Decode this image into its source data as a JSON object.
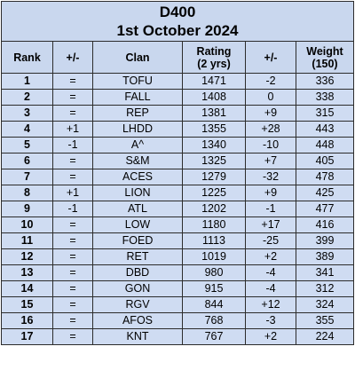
{
  "title": "D400",
  "subtitle": "1st October 2024",
  "columns": {
    "rank": "Rank",
    "change": "+/-",
    "clan": "Clan",
    "rating_line1": "Rating",
    "rating_line2": "(2 yrs)",
    "rating_change": "+/-",
    "weight_line1": "Weight",
    "weight_line2": "(150)"
  },
  "rows": [
    {
      "rank": "1",
      "change": "=",
      "clan": "TOFU",
      "rating": "1471",
      "rating_change": "-2",
      "weight": "336"
    },
    {
      "rank": "2",
      "change": "=",
      "clan": "FALL",
      "rating": "1408",
      "rating_change": "0",
      "weight": "338"
    },
    {
      "rank": "3",
      "change": "=",
      "clan": "REP",
      "rating": "1381",
      "rating_change": "+9",
      "weight": "315"
    },
    {
      "rank": "4",
      "change": "+1",
      "clan": "LHDD",
      "rating": "1355",
      "rating_change": "+28",
      "weight": "443"
    },
    {
      "rank": "5",
      "change": "-1",
      "clan": "A^",
      "rating": "1340",
      "rating_change": "-10",
      "weight": "448"
    },
    {
      "rank": "6",
      "change": "=",
      "clan": "S&M",
      "rating": "1325",
      "rating_change": "+7",
      "weight": "405"
    },
    {
      "rank": "7",
      "change": "=",
      "clan": "ACES",
      "rating": "1279",
      "rating_change": "-32",
      "weight": "478"
    },
    {
      "rank": "8",
      "change": "+1",
      "clan": "LION",
      "rating": "1225",
      "rating_change": "+9",
      "weight": "425"
    },
    {
      "rank": "9",
      "change": "-1",
      "clan": "ATL",
      "rating": "1202",
      "rating_change": "-1",
      "weight": "477"
    },
    {
      "rank": "10",
      "change": "=",
      "clan": "LOW",
      "rating": "1180",
      "rating_change": "+17",
      "weight": "416"
    },
    {
      "rank": "11",
      "change": "=",
      "clan": "FOED",
      "rating": "1113",
      "rating_change": "-25",
      "weight": "399"
    },
    {
      "rank": "12",
      "change": "=",
      "clan": "RET",
      "rating": "1019",
      "rating_change": "+2",
      "weight": "389"
    },
    {
      "rank": "13",
      "change": "=",
      "clan": "DBD",
      "rating": "980",
      "rating_change": "-4",
      "weight": "341"
    },
    {
      "rank": "14",
      "change": "=",
      "clan": "GON",
      "rating": "915",
      "rating_change": "-4",
      "weight": "312"
    },
    {
      "rank": "15",
      "change": "=",
      "clan": "RGV",
      "rating": "844",
      "rating_change": "+12",
      "weight": "324"
    },
    {
      "rank": "16",
      "change": "=",
      "clan": "AFOS",
      "rating": "768",
      "rating_change": "-3",
      "weight": "355"
    },
    {
      "rank": "17",
      "change": "=",
      "clan": "KNT",
      "rating": "767",
      "rating_change": "+2",
      "weight": "224"
    }
  ]
}
